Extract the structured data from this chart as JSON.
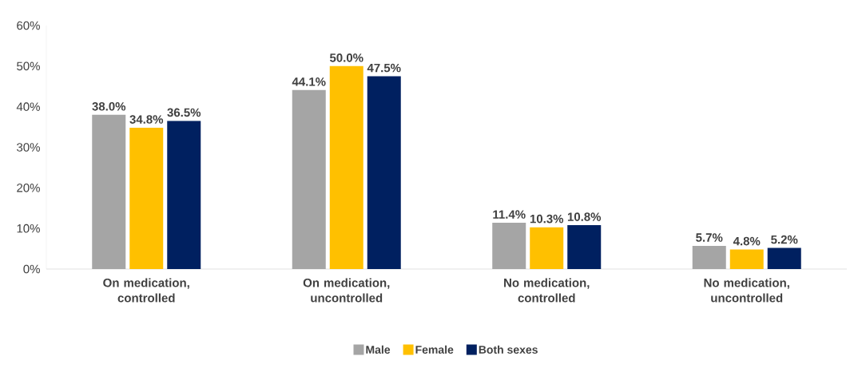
{
  "chart_data": {
    "type": "bar",
    "categories": [
      "On medication, controlled",
      "On medication, uncontrolled",
      "No medication, controlled",
      "No medication, uncontrolled"
    ],
    "series": [
      {
        "name": "Male",
        "color": "#a5a5a5",
        "values": [
          38.0,
          44.1,
          11.4,
          5.7
        ],
        "value_labels": [
          "38.0%",
          "44.1%",
          "11.4%",
          "5.7%"
        ]
      },
      {
        "name": "Female",
        "color": "#ffc000",
        "values": [
          34.8,
          50.0,
          10.3,
          4.8
        ],
        "value_labels": [
          "34.8%",
          "50.0%",
          "10.3%",
          "4.8%"
        ]
      },
      {
        "name": "Both sexes",
        "color": "#002060",
        "values": [
          36.5,
          47.5,
          10.8,
          5.2
        ],
        "value_labels": [
          "36.5%",
          "47.5%",
          "10.8%",
          "5.2%"
        ]
      }
    ],
    "ylim": [
      0,
      60
    ],
    "yticks": [
      {
        "value": 0,
        "label": "0%"
      },
      {
        "value": 10,
        "label": "10%"
      },
      {
        "value": 20,
        "label": "20%"
      },
      {
        "value": 30,
        "label": "30%"
      },
      {
        "value": 40,
        "label": "40%"
      },
      {
        "value": 50,
        "label": "50%"
      },
      {
        "value": 60,
        "label": "60%"
      }
    ],
    "grid": false,
    "legend": "bottom"
  }
}
